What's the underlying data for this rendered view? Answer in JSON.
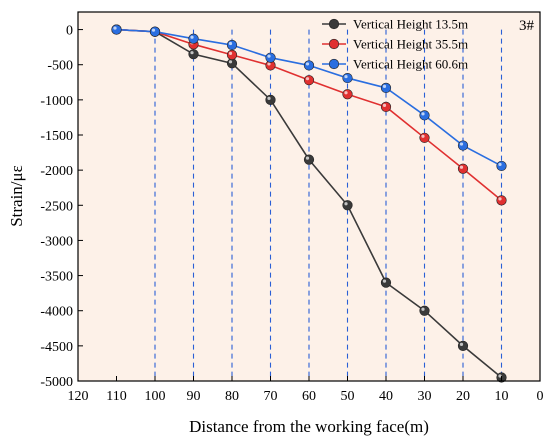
{
  "chart_data": {
    "type": "line",
    "annotation": "3#",
    "xlabel": "Distance from the working face(m)",
    "ylabel": "Strain/με",
    "xlim": [
      120,
      0
    ],
    "ylim": [
      -5000,
      250
    ],
    "x_reversed": true,
    "x_ticks": [
      120,
      110,
      100,
      90,
      80,
      70,
      60,
      50,
      40,
      30,
      20,
      10,
      0
    ],
    "y_ticks": [
      0,
      -500,
      -1000,
      -1500,
      -2000,
      -2500,
      -3000,
      -3500,
      -4000,
      -4500,
      -5000
    ],
    "x": [
      110,
      100,
      90,
      80,
      70,
      60,
      50,
      40,
      30,
      20,
      10
    ],
    "series": [
      {
        "name": "Vertical Height 13.5m",
        "color": "#3a3a3a",
        "values": [
          0,
          -30,
          -350,
          -480,
          -1000,
          -1850,
          -2500,
          -3600,
          -4000,
          -4500,
          -4950
        ]
      },
      {
        "name": "Vertical Height 35.5m",
        "color": "#e03030",
        "values": [
          0,
          -30,
          -210,
          -360,
          -510,
          -720,
          -920,
          -1100,
          -1540,
          -1980,
          -2430
        ]
      },
      {
        "name": "Vertical Height 60.6m",
        "color": "#2a6ee0",
        "values": [
          0,
          -30,
          -130,
          -220,
          -400,
          -510,
          -690,
          -830,
          -1220,
          -1650,
          -1940
        ]
      }
    ],
    "legend_position": "top-right",
    "grid": false,
    "vertical_guides": true,
    "plot_background": "#fdf1e8"
  }
}
